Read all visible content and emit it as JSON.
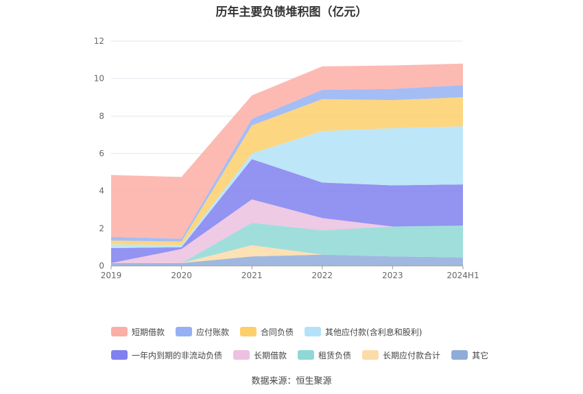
{
  "chart_data": {
    "type": "area",
    "stacked": true,
    "title": "历年主要负债堆积图（亿元）",
    "categories": [
      "2019",
      "2020",
      "2021",
      "2022",
      "2023",
      "2024H1"
    ],
    "ylim": [
      0,
      12
    ],
    "yticks": [
      0,
      2,
      4,
      6,
      8,
      10,
      12
    ],
    "grid": true,
    "legend_position": "bottom",
    "series": [
      {
        "name": "其它",
        "color": "#8fabd9",
        "values": [
          0.15,
          0.15,
          0.5,
          0.6,
          0.5,
          0.45
        ]
      },
      {
        "name": "长期应付款合计",
        "color": "#fbdca8",
        "values": [
          0.0,
          0.0,
          0.6,
          0.0,
          0.0,
          0.0
        ]
      },
      {
        "name": "租赁负债",
        "color": "#8fd8d6",
        "values": [
          0.0,
          0.0,
          1.2,
          1.3,
          1.6,
          1.7
        ]
      },
      {
        "name": "长期借款",
        "color": "#ecc1df",
        "values": [
          0.0,
          0.75,
          1.25,
          0.65,
          0.0,
          0.0
        ]
      },
      {
        "name": "一年内到期的非流动负债",
        "color": "#8080f0",
        "values": [
          0.8,
          0.1,
          2.15,
          1.9,
          2.2,
          2.2
        ]
      },
      {
        "name": "其他应付款(含利息和股利)",
        "color": "#b3e2f8",
        "values": [
          0.2,
          0.1,
          0.3,
          2.75,
          3.05,
          3.1
        ]
      },
      {
        "name": "合同负债",
        "color": "#fdcf6b",
        "values": [
          0.2,
          0.2,
          1.5,
          1.7,
          1.5,
          1.55
        ]
      },
      {
        "name": "应付账款",
        "color": "#95b1f3",
        "values": [
          0.2,
          0.15,
          0.35,
          0.5,
          0.6,
          0.65
        ]
      },
      {
        "name": "短期借款",
        "color": "#fbaea6",
        "values": [
          3.3,
          3.3,
          1.25,
          1.25,
          1.25,
          1.15
        ]
      }
    ],
    "source": "数据来源：恒生聚源"
  },
  "legend_rows": [
    [
      "短期借款",
      "应付账款",
      "合同负债",
      "其他应付款(含利息和股利)"
    ],
    [
      "一年内到期的非流动负债",
      "长期借款",
      "租赁负债",
      "长期应付款合计",
      "其它"
    ]
  ]
}
